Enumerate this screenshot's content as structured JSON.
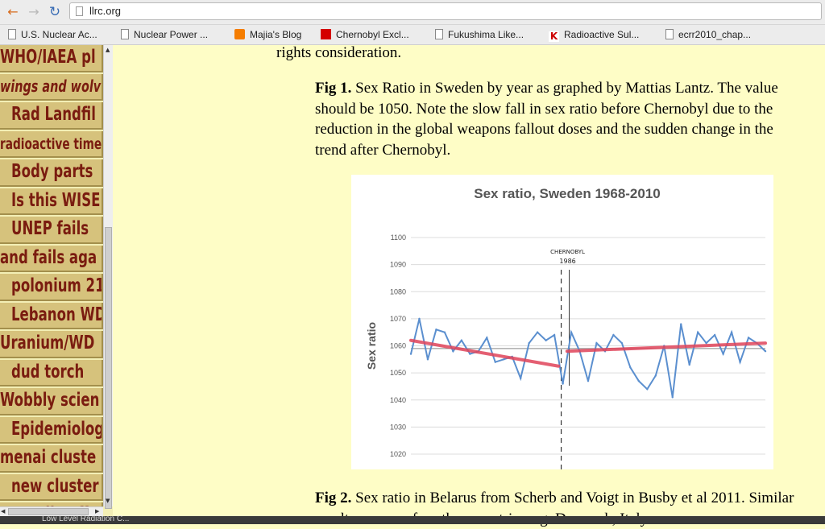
{
  "browser": {
    "url": "llrc.org",
    "bookmarks": [
      {
        "label": "U.S. Nuclear Ac...",
        "icon": "page-icon"
      },
      {
        "label": "Nuclear Power ...",
        "icon": "page-icon"
      },
      {
        "label": "Majia's Blog",
        "icon": "blogger-icon"
      },
      {
        "label": "Chernobyl Excl...",
        "icon": "red-logo-icon"
      },
      {
        "label": "Fukushima Like...",
        "icon": "page-icon"
      },
      {
        "label": "Radioactive Sul...",
        "icon": "k-logo-icon"
      },
      {
        "label": "ecrr2010_chap...",
        "icon": "page-icon"
      }
    ],
    "status": "Low Level Radiation C..."
  },
  "sidebar": {
    "items": [
      "WHO/IAEA pl",
      "wings and wolv",
      "Rad Landfil",
      "radioactive time",
      "Body parts",
      "Is this WISE",
      "UNEP fails",
      "and fails aga",
      "polonium 21",
      "Lebanon WD",
      "Uranium/WD",
      "dud torch",
      "Wobbly scien",
      "Epidemiolog",
      "menai cluste",
      "new cluster",
      "Headle off"
    ]
  },
  "content": {
    "intro": "rights consideration.",
    "fig1_label": "Fig 1.",
    "fig1_text": " Sex Ratio in Sweden by year as graphed by Mattias Lantz. The value should be 1050. Note the slow fall in sex ratio before Chernobyl due to the reduction in the global weapons fallout doses and the sudden change in the trend after Chernobyl.",
    "fig2_label": "Fig 2.",
    "fig2_text": " Sex ratio in Belarus from Scherb and Voigt in Busby et al 2011. Similar results are seen for other countries e.g. Denmark, Italy"
  },
  "chart_data": {
    "type": "line",
    "title": "Sex ratio, Sweden 1968-2010",
    "ylabel": "Sex ratio",
    "xlabel": "",
    "ylim": [
      1020,
      1100
    ],
    "yticks": [
      1020,
      1030,
      1040,
      1050,
      1060,
      1070,
      1080,
      1090,
      1100
    ],
    "xlim": [
      1968,
      2010
    ],
    "grid": "horizontal",
    "annotation": "CHERNOBYL 1986",
    "reference_line": 1059,
    "series": [
      {
        "x": [
          1968,
          1969,
          1970,
          1971,
          1972,
          1973,
          1974,
          1975,
          1976,
          1977,
          1978,
          1979,
          1980,
          1981,
          1982,
          1983,
          1984,
          1985,
          1986,
          1987,
          1988,
          1989,
          1990,
          1991,
          1992,
          1993,
          1994,
          1995,
          1996,
          1997,
          1998,
          1999,
          2000,
          2001,
          2002,
          2003,
          2004,
          2005,
          2006,
          2007,
          2008,
          2009,
          2010
        ],
        "values": [
          1057,
          1070,
          1055,
          1066,
          1065,
          1058,
          1062,
          1057,
          1058,
          1063,
          1054,
          1055,
          1056,
          1048,
          1061,
          1065,
          1062,
          1064,
          1046,
          1065,
          1058,
          1047,
          1061,
          1058,
          1064,
          1061,
          1052,
          1047,
          1044,
          1049,
          1060,
          1041,
          1068,
          1053,
          1065,
          1061,
          1064,
          1057,
          1065,
          1054,
          1063,
          1061,
          1058
        ]
      }
    ],
    "trend_lines": [
      {
        "x": [
          1968,
          1985.5
        ],
        "values": [
          1062,
          1052.5
        ]
      },
      {
        "x": [
          1986.5,
          2010
        ],
        "values": [
          1058,
          1061
        ]
      }
    ]
  }
}
